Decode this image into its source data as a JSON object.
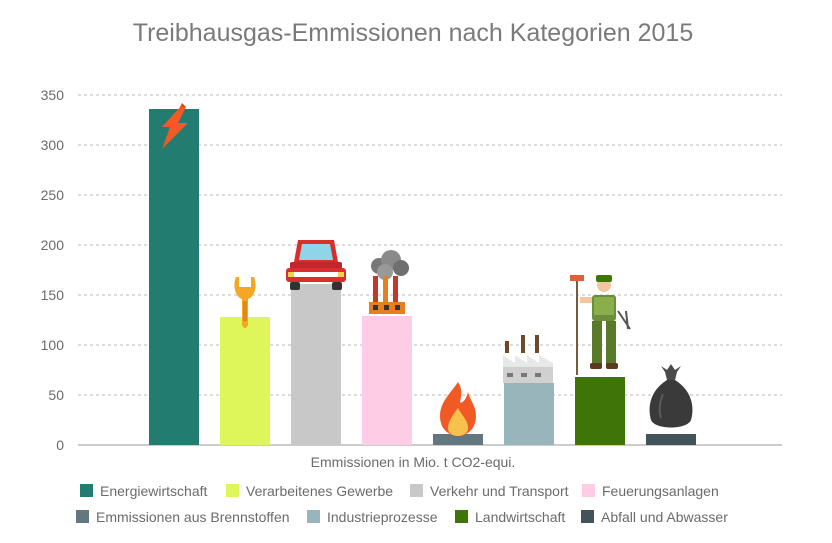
{
  "chart_data": {
    "type": "bar",
    "title": "Treibhausgas-Emmissionen nach Kategorien 2015",
    "xlabel": "Emmissionen in Mio. t CO2-equi.",
    "ylabel": "",
    "ylim": [
      0,
      350
    ],
    "yticks": [
      "0",
      "50",
      "100",
      "150",
      "200",
      "250",
      "300",
      "350"
    ],
    "grid": true,
    "legend_position": "bottom",
    "categories": [
      "Energiewirtschaft",
      "Verarbeitenes Gewerbe",
      "Verkehr und Transport",
      "Feuerungsanlagen",
      "Emmissionen aus Brennstoffen",
      "Industrieprozesse",
      "Landwirtschaft",
      "Abfall und Abwasser"
    ],
    "values": [
      336,
      128,
      161,
      129,
      11,
      62,
      68,
      11
    ],
    "colors": [
      "#227c6f",
      "#dff65b",
      "#c8c8c8",
      "#ffcce6",
      "#63787e",
      "#98b5bb",
      "#3f7508",
      "#425459"
    ],
    "icons": [
      "lightning-icon",
      "wrench-icon",
      "car-icon",
      "factory-chimney-icon",
      "flame-icon",
      "factory-roof-icon",
      "farmer-icon",
      "garbage-bag-icon"
    ]
  }
}
